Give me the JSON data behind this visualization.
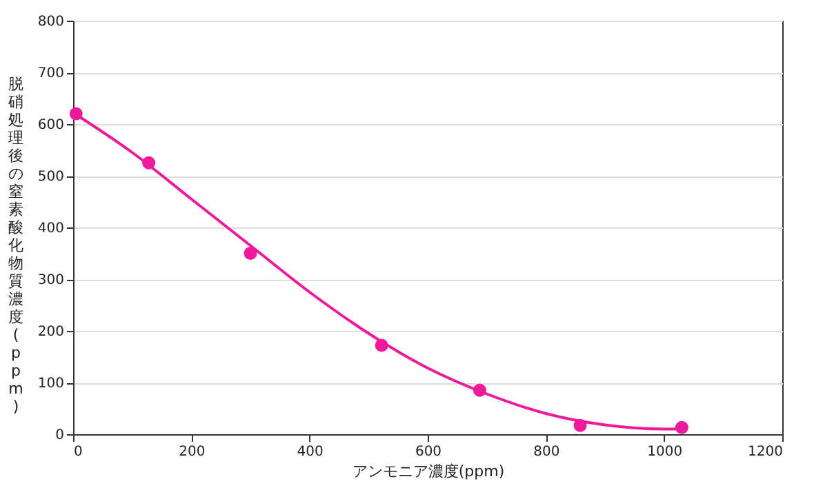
{
  "chart_data": {
    "type": "scatter",
    "xlabel": "アンモニア濃度(ppm)",
    "ylabel": "脱硝処理後の窒素酸化物質濃度(ppm)",
    "x": [
      5,
      128,
      300,
      522,
      688,
      858,
      1030
    ],
    "series": [
      {
        "color": "#ee1a9b",
        "marker": "circle",
        "values": [
          620,
          525,
          350,
          172,
          85,
          17,
          13
        ]
      },
      {
        "type": "line",
        "color": "#ee1a9b",
        "line_style": "solid",
        "x": [
          0,
          100,
          200,
          300,
          400,
          500,
          600,
          700,
          800,
          900,
          1000,
          1030
        ],
        "values": [
          622,
          545,
          455,
          365,
          275,
          195,
          128,
          78,
          40,
          18,
          10,
          10
        ]
      }
    ],
    "xlim": [
      0,
      1200
    ],
    "xticks": [
      0,
      200,
      400,
      600,
      800,
      1000,
      1200
    ],
    "ylim": [
      0,
      800
    ],
    "yticks": [
      0,
      100,
      200,
      300,
      400,
      500,
      600,
      700,
      800
    ],
    "grid": "y"
  }
}
